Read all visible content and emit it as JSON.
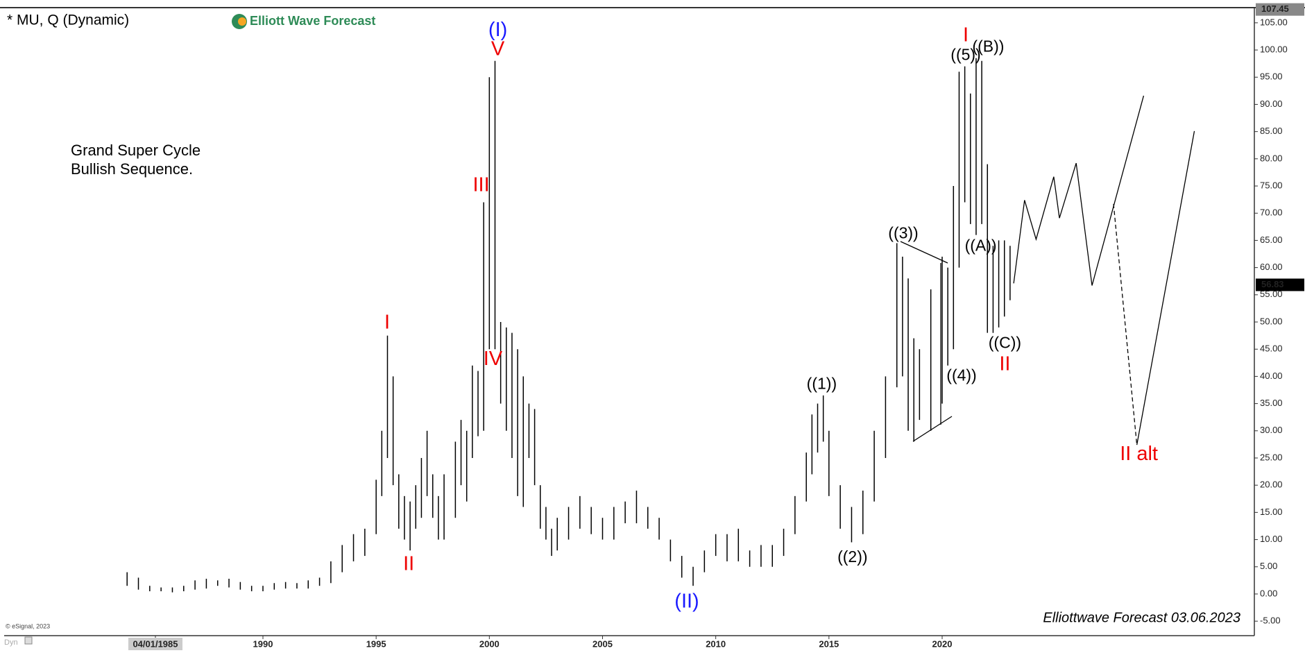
{
  "chart_data": {
    "type": "ohlc",
    "title": "* MU, Q (Dynamic)",
    "logo": "Elliott Wave Forecast",
    "note": [
      "Grand Super Cycle",
      "Bullish Sequence."
    ],
    "footer": "Elliottwave Forecast 03.06.2023",
    "copyright": "© eSignal, 2023",
    "corner": "Dyn",
    "last_price": 56.83,
    "top_price": 107.45,
    "color": "#000000",
    "xlim": [
      1978.57,
      2033.79
    ],
    "ylim": [
      -7.66,
      107.66
    ],
    "xticks": [
      {
        "value": 1985.25,
        "label": "04/01/1985"
      },
      1990,
      1995,
      2000,
      2005,
      2010,
      2015,
      2020
    ],
    "yticks": [
      {
        "value": -5,
        "label": "-5.00"
      },
      {
        "value": 0,
        "label": "0.00"
      },
      {
        "value": 5,
        "label": "5.00"
      },
      {
        "value": 10,
        "label": "10.00"
      },
      {
        "value": 15,
        "label": "15.00"
      },
      {
        "value": 20,
        "label": "20.00"
      },
      {
        "value": 25,
        "label": "25.00"
      },
      {
        "value": 30,
        "label": "30.00"
      },
      {
        "value": 35,
        "label": "35.00"
      },
      {
        "value": 40,
        "label": "40.00"
      },
      {
        "value": 45,
        "label": "45.00"
      },
      {
        "value": 50,
        "label": "50.00"
      },
      {
        "value": 55,
        "label": "55.00"
      },
      {
        "value": 60,
        "label": "60.00"
      },
      {
        "value": 65,
        "label": "65.00"
      },
      {
        "value": 70,
        "label": "70.00"
      },
      {
        "value": 75,
        "label": "75.00"
      },
      {
        "value": 80,
        "label": "80.00"
      },
      {
        "value": 85,
        "label": "85.00"
      },
      {
        "value": 90,
        "label": "90.00"
      },
      {
        "value": 95,
        "label": "95.00"
      },
      {
        "value": 100,
        "label": "100.00"
      },
      {
        "value": 105,
        "label": "105.00"
      }
    ],
    "x": [
      1984,
      1984.5,
      1985,
      1985.5,
      1986,
      1986.5,
      1987,
      1987.5,
      1988,
      1988.5,
      1989,
      1989.5,
      1990,
      1990.5,
      1991,
      1991.5,
      1992,
      1992.5,
      1993,
      1993.5,
      1994,
      1994.5,
      1995,
      1995.25,
      1995.5,
      1995.75,
      1996,
      1996.25,
      1996.5,
      1996.75,
      1997,
      1997.25,
      1997.5,
      1997.75,
      1998,
      1998.5,
      1998.75,
      1999,
      1999.25,
      1999.5,
      1999.75,
      2000,
      2000.25,
      2000.5,
      2000.75,
      2001,
      2001.25,
      2001.5,
      2001.75,
      2002,
      2002.25,
      2002.5,
      2002.75,
      2003,
      2003.5,
      2004,
      2004.5,
      2005,
      2005.5,
      2006,
      2006.5,
      2007,
      2007.5,
      2008,
      2008.5,
      2009,
      2009.5,
      2010,
      2010.5,
      2011,
      2011.5,
      2012,
      2012.5,
      2013,
      2013.5,
      2014,
      2014.25,
      2014.5,
      2014.75,
      2015,
      2015.5,
      2016,
      2016.5,
      2017,
      2017.5,
      2018,
      2018.25,
      2018.5,
      2018.75,
      2019,
      2019.5,
      2020,
      2020.25,
      2020.5,
      2020.75,
      2021,
      2021.25,
      2021.5,
      2021.75,
      2022,
      2022.25,
      2022.5,
      2022.75,
      2023
    ],
    "high": [
      4,
      3,
      1.5,
      1.2,
      1.2,
      1.5,
      2.5,
      2.8,
      2.5,
      2.8,
      2.2,
      1.5,
      1.5,
      2,
      2.2,
      2,
      2.5,
      3,
      6,
      9,
      11,
      12,
      21,
      30,
      47.5,
      40,
      22,
      18,
      17,
      20,
      25,
      30,
      22,
      18,
      22,
      28,
      32,
      30,
      42,
      41,
      72,
      95,
      98,
      50,
      49,
      48,
      45,
      40,
      35,
      34,
      20,
      16,
      12,
      14,
      16,
      18,
      16,
      14,
      16,
      17,
      19,
      16,
      14,
      10,
      7,
      5,
      8,
      11,
      11,
      12,
      8,
      9,
      9,
      12,
      18,
      26,
      33,
      35,
      36.5,
      30,
      20,
      16,
      19,
      30,
      40,
      64.5,
      62,
      58,
      47,
      45,
      56,
      62,
      60,
      75,
      96,
      97,
      92,
      98.5,
      98,
      79,
      64,
      65,
      65,
      64
    ],
    "low": [
      1.5,
      0.8,
      0.5,
      0.5,
      0.3,
      0.5,
      0.8,
      1,
      1.5,
      1.2,
      0.8,
      0.5,
      0.5,
      0.8,
      1,
      1,
      1,
      1.5,
      2,
      4,
      6,
      7,
      11,
      18,
      25,
      20,
      12,
      10,
      8,
      12,
      14,
      18,
      14,
      10,
      10,
      14,
      20,
      17,
      25,
      29,
      30,
      45,
      45,
      35,
      30,
      25,
      18,
      16,
      25,
      20,
      12,
      10,
      7,
      8,
      10,
      12,
      11,
      10,
      10,
      13,
      13,
      12,
      10,
      6,
      3,
      1.5,
      4,
      7,
      6,
      6,
      5,
      5,
      5,
      7,
      11,
      17,
      22,
      26,
      28,
      18,
      12,
      9.5,
      11,
      17,
      25,
      38,
      40,
      30,
      28,
      32,
      30,
      35,
      42,
      45,
      60,
      72,
      68,
      66,
      68,
      48,
      48,
      49,
      51,
      54
    ],
    "projection": {
      "x": [
        2023.16,
        2023.64,
        2024.15,
        2024.93,
        2025.18,
        2025.92,
        2026.62,
        2028.9
      ],
      "y": [
        57.1,
        72.4,
        65.2,
        76.7,
        69.1,
        79.2,
        56.7,
        91.6
      ]
    },
    "alt_projection": {
      "x": [
        2027.57,
        2028.6,
        2031.14
      ],
      "y": [
        71.7,
        27.4,
        85.1
      ]
    },
    "wave_labels": [
      "(I)",
      "V",
      "III",
      "IV",
      "I",
      "II",
      "(II)",
      "((1))",
      "((2))",
      "((3))",
      "((4))",
      "((5))",
      "I",
      "((B))",
      "((A))",
      "((C))",
      "II",
      "II alt"
    ]
  }
}
